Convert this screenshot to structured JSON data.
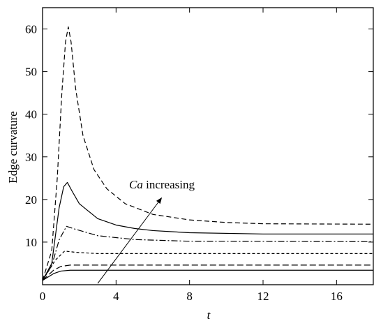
{
  "chart_data": {
    "type": "line",
    "title": "",
    "xlabel": "t",
    "ylabel": "Edge curvature",
    "xlim": [
      0,
      18
    ],
    "ylim": [
      0,
      65
    ],
    "xticks": [
      0,
      4,
      8,
      12,
      16
    ],
    "yticks": [
      10,
      20,
      30,
      40,
      50,
      60
    ],
    "grid": false,
    "legend": "none",
    "annotation": {
      "text_italic": "Ca",
      "text_rest": " increasing",
      "arrow_from": [
        3.0,
        0.3
      ],
      "arrow_to": [
        6.5,
        20.5
      ]
    },
    "series": [
      {
        "style": "solid",
        "color": "#000000",
        "tau": 0.35,
        "points": [
          [
            0,
            1
          ],
          [
            0.6,
            2.6
          ],
          [
            1.0,
            3.2
          ],
          [
            1.5,
            3.4
          ],
          [
            2.5,
            3.4
          ],
          [
            18,
            3.4
          ]
        ]
      },
      {
        "style": "long-dash",
        "color": "#000000",
        "tau": 0.35,
        "points": [
          [
            0,
            1
          ],
          [
            0.6,
            3.4
          ],
          [
            1.0,
            4.3
          ],
          [
            1.5,
            4.6
          ],
          [
            2.5,
            4.6
          ],
          [
            18,
            4.6
          ]
        ]
      },
      {
        "style": "short-dash",
        "color": "#000000",
        "tau": 0.4,
        "points": [
          [
            0,
            1
          ],
          [
            0.7,
            5.8
          ],
          [
            1.2,
            7.9
          ],
          [
            1.8,
            7.6
          ],
          [
            3,
            7.3
          ],
          [
            18,
            7.3
          ]
        ]
      },
      {
        "style": "dash-dot",
        "color": "#000000",
        "tau": 0.9,
        "points": [
          [
            0,
            1
          ],
          [
            0.5,
            4.5
          ],
          [
            0.9,
            10.5
          ],
          [
            1.3,
            13.7
          ],
          [
            1.8,
            13.0
          ],
          [
            3,
            11.5
          ],
          [
            5,
            10.6
          ],
          [
            8,
            10.2
          ],
          [
            18,
            10.1
          ]
        ]
      },
      {
        "style": "solid",
        "color": "#000000",
        "tau": 1.2,
        "points": [
          [
            0,
            1
          ],
          [
            0.5,
            5
          ],
          [
            0.9,
            18
          ],
          [
            1.15,
            23
          ],
          [
            1.35,
            24
          ],
          [
            1.6,
            22
          ],
          [
            2,
            19
          ],
          [
            3,
            15.5
          ],
          [
            4,
            14
          ],
          [
            5,
            13.2
          ],
          [
            6,
            12.7
          ],
          [
            8,
            12.2
          ],
          [
            12,
            11.9
          ],
          [
            18,
            11.9
          ]
        ]
      },
      {
        "style": "dashed",
        "color": "#000000",
        "tau": 1.5,
        "points": [
          [
            0,
            1
          ],
          [
            0.5,
            8
          ],
          [
            0.8,
            25
          ],
          [
            1.05,
            45
          ],
          [
            1.25,
            57
          ],
          [
            1.4,
            60.5
          ],
          [
            1.55,
            57
          ],
          [
            1.8,
            46
          ],
          [
            2.2,
            35
          ],
          [
            2.8,
            27
          ],
          [
            3.5,
            22.5
          ],
          [
            4.5,
            19
          ],
          [
            6,
            16.5
          ],
          [
            8,
            15.2
          ],
          [
            10,
            14.6
          ],
          [
            12,
            14.3
          ],
          [
            18,
            14.2
          ]
        ]
      }
    ]
  }
}
